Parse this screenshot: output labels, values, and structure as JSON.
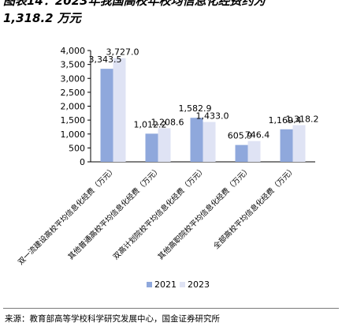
{
  "figure": {
    "title_line1": "图表14：2023年我国高校年校均信息化经费约为",
    "title_line2": "1,318.2 万元",
    "source": "来源：教育部高等学校科学研究发展中心，国金证券研究所"
  },
  "chart_data": {
    "type": "bar",
    "categories": [
      "双一流建设高校平均信息化经费（万元）",
      "其他普通高校平均信息化经费（万元）",
      "双高计划院校平均信息化经费（万元）",
      "其他高职院校平均信息化经费（万元）",
      "全部高校平均信息化经费（万元）"
    ],
    "series": [
      {
        "name": "2021",
        "values": [
          3343.5,
          1012.2,
          1582.9,
          605.9,
          1169.4
        ],
        "labels": [
          "3,343.5",
          "1,012.2",
          "1,582.9",
          "605.9",
          "1,169.4"
        ],
        "color": "#8fa8dc"
      },
      {
        "name": "2023",
        "values": [
          3727.0,
          1208.6,
          1433.0,
          746.4,
          1318.2
        ],
        "labels": [
          "3,727.0",
          "1,208.6",
          "1,433.0",
          "746.4",
          "1,318.2"
        ],
        "color": "#dfe3f4"
      }
    ],
    "ylim": [
      0,
      4000
    ],
    "yticks": [
      0,
      500,
      1000,
      1500,
      2000,
      2500,
      3000,
      3500,
      4000
    ],
    "ytick_labels": [
      "0",
      "500",
      "1,000",
      "1,500",
      "2,000",
      "2,500",
      "3,000",
      "3,500",
      "4,000"
    ],
    "grid": false,
    "legend_position": "bottom"
  }
}
